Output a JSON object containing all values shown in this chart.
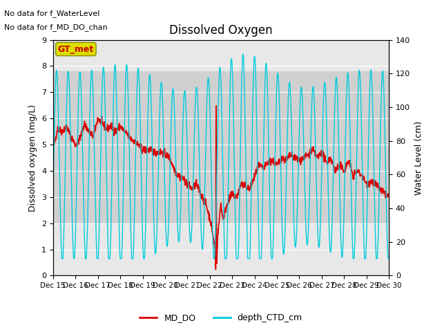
{
  "title": "Dissolved Oxygen",
  "xlabel_ticks": [
    "Dec 15",
    "Dec 16",
    "Dec 17",
    "Dec 18",
    "Dec 19",
    "Dec 20",
    "Dec 21",
    "Dec 22",
    "Dec 23",
    "Dec 24",
    "Dec 25",
    "Dec 26",
    "Dec 27",
    "Dec 28",
    "Dec 29",
    "Dec 30"
  ],
  "ylabel_left": "Dissolved oxygen (mg/L)",
  "ylabel_right": "Water Level (cm)",
  "ylim_left": [
    0.0,
    9.0
  ],
  "ylim_right": [
    0,
    140
  ],
  "yticks_left": [
    0.0,
    1.0,
    2.0,
    3.0,
    4.0,
    5.0,
    6.0,
    7.0,
    8.0,
    9.0
  ],
  "yticks_right": [
    0,
    20,
    40,
    60,
    80,
    100,
    120,
    140
  ],
  "annotation_text1": "No data for f_WaterLevel",
  "annotation_text2": "No data for f_MD_DO_chan",
  "gt_met_label": "GT_met",
  "legend_entries": [
    "MD_DO",
    "depth_CTD_cm"
  ],
  "legend_colors": [
    "#dd0000",
    "#00ccdd"
  ],
  "md_do_color": "#dd0000",
  "depth_ctd_color": "#00ccdd",
  "background_color": "#ffffff",
  "plot_bg_color": "#e8e8e8",
  "shaded_band_low": 2.0,
  "shaded_band_high": 7.8,
  "shaded_band_color": "#d0d0d0",
  "grid_color": "#ffffff",
  "gt_met_bg": "#dddd00",
  "gt_met_text_color": "#cc0000",
  "gt_met_border": "#888800"
}
